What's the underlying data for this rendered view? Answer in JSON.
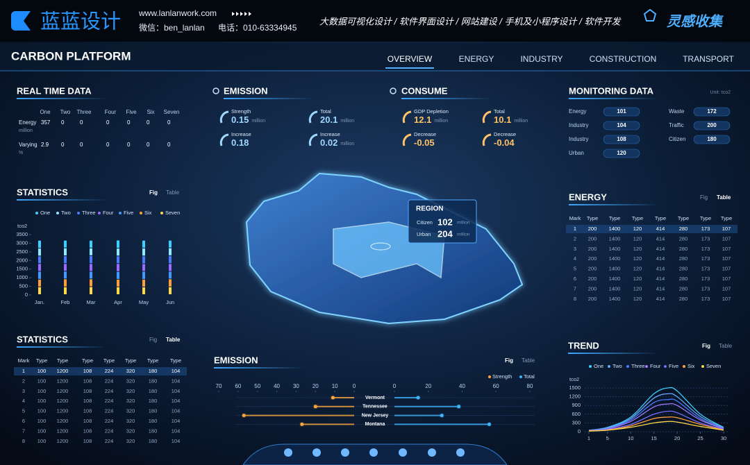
{
  "header": {
    "logo": "蓝蓝设计",
    "url": "www.lanlanwork.com",
    "wechat": "微信：ben_lanlan",
    "phone": "电话：010-63334945",
    "services": "大数据可视化设计 / 软件界面设计 / 网站建设 / 手机及小程序设计 / 软件开发",
    "brand": "灵感收集"
  },
  "title": "CARBON PLATFORM",
  "nav": {
    "items": [
      "OVERVIEW",
      "ENERGY",
      "INDUSTRY",
      "CONSTRUCTION",
      "TRANSPORT"
    ],
    "active": 0
  },
  "real_time": {
    "title": "REAL TIME DATA",
    "columns": [
      "One",
      "Two",
      "Three",
      "Four",
      "Five",
      "Six",
      "Seven"
    ],
    "rows": [
      {
        "label": "Energy",
        "unit": "million",
        "values": [
          357,
          0,
          0,
          0,
          0,
          0,
          0
        ]
      },
      {
        "label": "Varying",
        "unit": "%",
        "values": [
          2.9,
          0,
          0,
          0,
          0,
          0,
          0
        ]
      }
    ]
  },
  "statistics_chart": {
    "type": "bar",
    "stacked": true,
    "title": "STATISTICS",
    "tabs": [
      "Fig",
      "Table"
    ],
    "active_tab": 0,
    "unit": "tco2",
    "categories": [
      "Jan.",
      "Feb",
      "Mar",
      "Apr",
      "May",
      "Jun"
    ],
    "series": [
      {
        "name": "One",
        "color": "#3ad0ff",
        "values": [
          460,
          440,
          450,
          470,
          450,
          440
        ]
      },
      {
        "name": "Two",
        "color": "#8feaff",
        "values": [
          450,
          460,
          440,
          450,
          460,
          450
        ]
      },
      {
        "name": "Three",
        "color": "#4a7bff",
        "values": [
          440,
          450,
          460,
          440,
          450,
          460
        ]
      },
      {
        "name": "Four",
        "color": "#9b6bff",
        "values": [
          450,
          440,
          450,
          460,
          440,
          450
        ]
      },
      {
        "name": "Five",
        "color": "#3f9bff",
        "values": [
          460,
          450,
          440,
          450,
          460,
          440
        ]
      },
      {
        "name": "Six",
        "color": "#ff9f3a",
        "values": [
          440,
          460,
          450,
          440,
          450,
          460
        ]
      },
      {
        "name": "Seven",
        "color": "#ffd84a",
        "values": [
          450,
          450,
          460,
          450,
          440,
          450
        ]
      }
    ],
    "ylim": [
      0,
      3500
    ],
    "yticks": [
      0,
      500,
      1000,
      1500,
      2000,
      2500,
      3000,
      3500
    ]
  },
  "statistics_table": {
    "title": "STATISTICS",
    "tabs": [
      "Fig",
      "Table"
    ],
    "active_tab": 1,
    "columns": [
      "Mark",
      "Type",
      "Type",
      "Type",
      "Type",
      "Type",
      "Type",
      "Type"
    ],
    "rows": [
      [
        1,
        100,
        1200,
        108,
        224,
        320,
        180,
        104
      ],
      [
        2,
        100,
        1200,
        108,
        224,
        320,
        180,
        104
      ],
      [
        3,
        100,
        1200,
        108,
        224,
        320,
        180,
        104
      ],
      [
        4,
        100,
        1200,
        108,
        224,
        320,
        180,
        104
      ],
      [
        5,
        100,
        1200,
        108,
        224,
        320,
        180,
        104
      ],
      [
        6,
        100,
        1200,
        108,
        224,
        320,
        180,
        104
      ],
      [
        7,
        100,
        1200,
        108,
        224,
        320,
        180,
        104
      ],
      [
        8,
        100,
        1200,
        108,
        224,
        320,
        180,
        104
      ]
    ]
  },
  "emission": {
    "title": "EMISSION",
    "items": [
      {
        "label": "Strength",
        "value": 0.15,
        "unit": "million"
      },
      {
        "label": "Total",
        "value": 20.1,
        "unit": "million"
      },
      {
        "label": "Increase",
        "value": 0.18
      },
      {
        "label": "Increase",
        "value": 0.02,
        "unit": "million"
      }
    ]
  },
  "consume": {
    "title": "CONSUME",
    "items": [
      {
        "label": "GDP Depletion",
        "value": 12.1,
        "unit": "million"
      },
      {
        "label": "Total",
        "value": 10.1,
        "unit": "million"
      },
      {
        "label": "Decrease",
        "value": -0.05
      },
      {
        "label": "Decrease",
        "value": -0.04
      }
    ]
  },
  "monitoring": {
    "title": "MONITORING DATA",
    "unit": "Unit: tco2",
    "items": [
      {
        "label": "Energy",
        "value": 101
      },
      {
        "label": "Industry",
        "value": 104
      },
      {
        "label": "Industry",
        "value": 108
      },
      {
        "label": "Urban",
        "value": 120
      },
      {
        "label": "Waste",
        "value": 172
      },
      {
        "label": "Traffic",
        "value": 200
      },
      {
        "label": "Citizen",
        "value": 180
      }
    ]
  },
  "region": {
    "title": "REGION",
    "items": [
      {
        "label": "Citizen",
        "value": 102,
        "unit": "million"
      },
      {
        "label": "Urban",
        "value": 204,
        "unit": "million"
      }
    ]
  },
  "energy_table": {
    "title": "ENERGY",
    "tabs": [
      "Fig",
      "Table"
    ],
    "active_tab": 1,
    "columns": [
      "Mark",
      "Type",
      "Type",
      "Type",
      "Type",
      "Type",
      "Type",
      "Type"
    ],
    "rows": [
      [
        1,
        200,
        1400,
        120,
        414,
        280,
        173,
        107
      ],
      [
        2,
        200,
        1400,
        120,
        414,
        280,
        173,
        107
      ],
      [
        3,
        200,
        1400,
        120,
        414,
        280,
        173,
        107
      ],
      [
        4,
        200,
        1400,
        120,
        414,
        280,
        173,
        107
      ],
      [
        5,
        200,
        1400,
        120,
        414,
        280,
        173,
        107
      ],
      [
        6,
        200,
        1400,
        120,
        414,
        280,
        173,
        107
      ],
      [
        7,
        200,
        1400,
        120,
        414,
        280,
        173,
        107
      ],
      [
        8,
        200,
        1400,
        120,
        414,
        280,
        173,
        107
      ]
    ]
  },
  "emission_chart": {
    "type": "butterfly",
    "title": "EMISSION",
    "tabs": [
      "Fig",
      "Table"
    ],
    "active_tab": 0,
    "categories": [
      "Vermont",
      "Tennessee",
      "New Jersey",
      "Montana"
    ],
    "series": [
      {
        "name": "Strength",
        "color": "#ffa63a",
        "side": "left",
        "values": [
          11,
          20,
          57,
          27
        ]
      },
      {
        "name": "Total",
        "color": "#3fb6ff",
        "side": "right",
        "values": [
          14,
          38,
          28,
          56
        ]
      }
    ],
    "left_xlim": [
      0,
      70
    ],
    "left_xticks": [
      70,
      60,
      50,
      40,
      30,
      20,
      10,
      0
    ],
    "right_xlim": [
      0,
      80
    ],
    "right_xticks": [
      0,
      20,
      40,
      60,
      80
    ]
  },
  "trend_chart": {
    "type": "line",
    "title": "TREND",
    "tabs": [
      "Fig",
      "Table"
    ],
    "active_tab": 0,
    "unit": "tco2",
    "x": [
      1,
      5,
      10,
      15,
      18,
      20,
      25,
      30
    ],
    "xlim": [
      1,
      30
    ],
    "xticks": [
      1,
      5,
      10,
      15,
      20,
      25,
      30
    ],
    "ylim": [
      0,
      1500
    ],
    "yticks": [
      0,
      300,
      600,
      900,
      1200,
      1500
    ],
    "grid": true,
    "series": [
      {
        "name": "One",
        "color": "#3ad0ff",
        "values": [
          50,
          150,
          500,
          1300,
          1500,
          1400,
          600,
          150
        ]
      },
      {
        "name": "Two",
        "color": "#6aa8ff",
        "values": [
          50,
          130,
          450,
          1150,
          1300,
          1200,
          520,
          130
        ]
      },
      {
        "name": "Three",
        "color": "#4a7bff",
        "values": [
          40,
          110,
          400,
          1000,
          1100,
          1050,
          450,
          110
        ]
      },
      {
        "name": "Four",
        "color": "#a57bff",
        "values": [
          40,
          100,
          350,
          850,
          950,
          900,
          400,
          100
        ]
      },
      {
        "name": "Five",
        "color": "#7b6bff",
        "values": [
          30,
          80,
          250,
          600,
          700,
          650,
          300,
          80
        ]
      },
      {
        "name": "Six",
        "color": "#ff9f3a",
        "values": [
          30,
          60,
          200,
          450,
          500,
          480,
          250,
          60
        ]
      },
      {
        "name": "Seven",
        "color": "#ffd84a",
        "values": [
          20,
          50,
          150,
          300,
          350,
          330,
          180,
          50
        ]
      }
    ]
  }
}
